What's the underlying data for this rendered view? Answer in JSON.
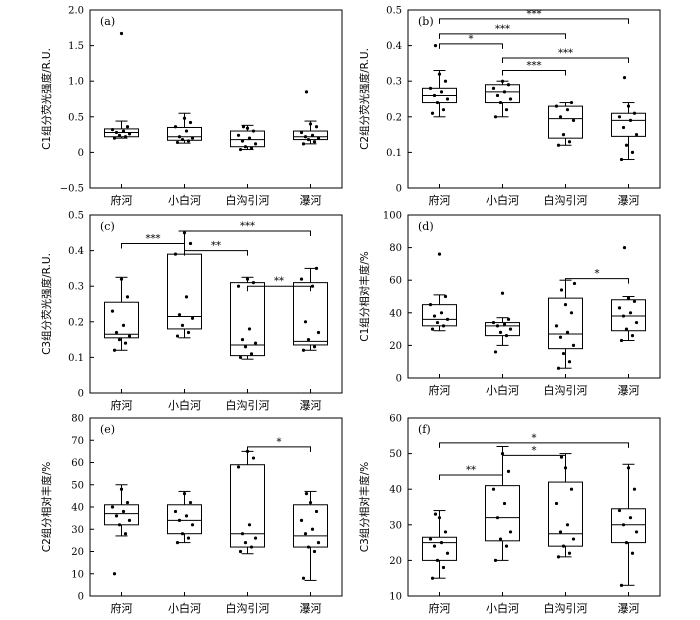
{
  "chart_data": [
    {
      "type": "box",
      "panel_label": "(a)",
      "ylabel": "C1组分荧光强度/R.U.",
      "ylim": [
        -0.5,
        2.0
      ],
      "yticks": [
        "−0.5",
        "0",
        "0.5",
        "1.0",
        "1.5",
        "2.0"
      ],
      "ytick_values": [
        -0.5,
        0,
        0.5,
        1.0,
        1.5,
        2.0
      ],
      "categories": [
        "府河",
        "小白河",
        "白沟引河",
        "瀑河"
      ],
      "boxes": [
        {
          "min": 0.2,
          "q1": 0.22,
          "median": 0.28,
          "q3": 0.33,
          "max": 0.44
        },
        {
          "min": 0.13,
          "q1": 0.17,
          "median": 0.22,
          "q3": 0.35,
          "max": 0.55
        },
        {
          "min": 0.04,
          "q1": 0.08,
          "median": 0.18,
          "q3": 0.3,
          "max": 0.38
        },
        {
          "min": 0.12,
          "q1": 0.18,
          "median": 0.22,
          "q3": 0.3,
          "max": 0.44
        }
      ],
      "points": [
        [
          0.2,
          0.22,
          0.24,
          0.26,
          0.28,
          0.3,
          0.32,
          0.36,
          1.67
        ],
        [
          0.14,
          0.16,
          0.18,
          0.2,
          0.22,
          0.3,
          0.36,
          0.42,
          0.48
        ],
        [
          0.04,
          0.06,
          0.08,
          0.12,
          0.16,
          0.2,
          0.24,
          0.3,
          0.34,
          0.36
        ],
        [
          0.12,
          0.15,
          0.18,
          0.2,
          0.22,
          0.24,
          0.28,
          0.36,
          0.4,
          0.85
        ]
      ],
      "significance": []
    },
    {
      "type": "box",
      "panel_label": "(b)",
      "ylabel": "C2组分荧光强度/R.U.",
      "ylim": [
        0,
        0.5
      ],
      "yticks": [
        "0",
        "0.1",
        "0.2",
        "0.3",
        "0.4",
        "0.5"
      ],
      "ytick_values": [
        0,
        0.1,
        0.2,
        0.3,
        0.4,
        0.5
      ],
      "categories": [
        "府河",
        "小白河",
        "白沟引河",
        "瀑河"
      ],
      "boxes": [
        {
          "min": 0.2,
          "q1": 0.24,
          "median": 0.26,
          "q3": 0.28,
          "max": 0.33
        },
        {
          "min": 0.2,
          "q1": 0.24,
          "median": 0.27,
          "q3": 0.29,
          "max": 0.3
        },
        {
          "min": 0.12,
          "q1": 0.14,
          "median": 0.195,
          "q3": 0.23,
          "max": 0.24
        },
        {
          "min": 0.08,
          "q1": 0.145,
          "median": 0.19,
          "q3": 0.21,
          "max": 0.24
        }
      ],
      "points": [
        [
          0.21,
          0.22,
          0.24,
          0.25,
          0.26,
          0.27,
          0.28,
          0.3,
          0.32,
          0.4
        ],
        [
          0.2,
          0.22,
          0.24,
          0.25,
          0.26,
          0.27,
          0.28,
          0.29,
          0.3
        ],
        [
          0.12,
          0.13,
          0.15,
          0.19,
          0.2,
          0.22,
          0.23,
          0.24
        ],
        [
          0.08,
          0.1,
          0.12,
          0.15,
          0.17,
          0.19,
          0.2,
          0.21,
          0.23,
          0.31
        ]
      ],
      "significance": [
        {
          "from": 0,
          "to": 3,
          "y": 0.475,
          "label": "***"
        },
        {
          "from": 0,
          "to": 2,
          "y": 0.433,
          "label": "***"
        },
        {
          "from": 0,
          "to": 1,
          "y": 0.405,
          "label": "*"
        },
        {
          "from": 1,
          "to": 3,
          "y": 0.365,
          "label": "***"
        },
        {
          "from": 1,
          "to": 2,
          "y": 0.33,
          "label": "***"
        }
      ]
    },
    {
      "type": "box",
      "panel_label": "(c)",
      "ylabel": "C3组分荧光强度/R.U.",
      "ylim": [
        0,
        0.5
      ],
      "yticks": [
        "0",
        "0.1",
        "0.2",
        "0.3",
        "0.4",
        "0.5"
      ],
      "ytick_values": [
        0,
        0.1,
        0.2,
        0.3,
        0.4,
        0.5
      ],
      "categories": [
        "府河",
        "小白河",
        "白沟引河",
        "瀑河"
      ],
      "boxes": [
        {
          "min": 0.12,
          "q1": 0.155,
          "median": 0.165,
          "q3": 0.255,
          "max": 0.325
        },
        {
          "min": 0.155,
          "q1": 0.18,
          "median": 0.215,
          "q3": 0.39,
          "max": 0.455
        },
        {
          "min": 0.095,
          "q1": 0.105,
          "median": 0.135,
          "q3": 0.31,
          "max": 0.325
        },
        {
          "min": 0.12,
          "q1": 0.135,
          "median": 0.145,
          "q3": 0.31,
          "max": 0.35
        }
      ],
      "points": [
        [
          0.12,
          0.14,
          0.15,
          0.16,
          0.17,
          0.19,
          0.23,
          0.27,
          0.32
        ],
        [
          0.16,
          0.17,
          0.19,
          0.21,
          0.22,
          0.27,
          0.39,
          0.42,
          0.45
        ],
        [
          0.1,
          0.11,
          0.13,
          0.14,
          0.15,
          0.18,
          0.3,
          0.31,
          0.32
        ],
        [
          0.12,
          0.13,
          0.15,
          0.17,
          0.2,
          0.3,
          0.32,
          0.35
        ]
      ],
      "significance": [
        {
          "from": 1,
          "to": 3,
          "y": 0.455,
          "label": "***"
        },
        {
          "from": 0,
          "to": 1,
          "y": 0.42,
          "label": "***"
        },
        {
          "from": 1,
          "to": 2,
          "y": 0.4,
          "label": "**"
        },
        {
          "from": 2,
          "to": 3,
          "y": 0.3,
          "label": "**"
        }
      ]
    },
    {
      "type": "box",
      "panel_label": "(d)",
      "ylabel": "C1组分相对丰度/%",
      "ylim": [
        0,
        100
      ],
      "yticks": [
        "0",
        "20",
        "40",
        "60",
        "80",
        "100"
      ],
      "ytick_values": [
        0,
        20,
        40,
        60,
        80,
        100
      ],
      "categories": [
        "府河",
        "小白河",
        "白沟引河",
        "瀑河"
      ],
      "boxes": [
        {
          "min": 29,
          "q1": 32,
          "median": 36,
          "q3": 45,
          "max": 51
        },
        {
          "min": 20,
          "q1": 26,
          "median": 32,
          "q3": 34,
          "max": 37
        },
        {
          "min": 6,
          "q1": 18,
          "median": 27,
          "q3": 49,
          "max": 60
        },
        {
          "min": 23,
          "q1": 29,
          "median": 38,
          "q3": 48,
          "max": 50
        }
      ],
      "points": [
        [
          30,
          32,
          34,
          36,
          38,
          40,
          45,
          50,
          76
        ],
        [
          16,
          26,
          28,
          30,
          32,
          33,
          34,
          36,
          52
        ],
        [
          6,
          10,
          15,
          20,
          25,
          28,
          32,
          40,
          45,
          54,
          58
        ],
        [
          23,
          26,
          30,
          34,
          38,
          40,
          43,
          47,
          49,
          80
        ]
      ],
      "significance": [
        {
          "from": 2,
          "to": 3,
          "y": 61,
          "label": "*"
        }
      ]
    },
    {
      "type": "box",
      "panel_label": "(e)",
      "ylabel": "C2组分相对丰度/%",
      "ylim": [
        0,
        80
      ],
      "yticks": [
        "0",
        "10",
        "20",
        "30",
        "40",
        "50",
        "60",
        "70",
        "80"
      ],
      "ytick_values": [
        0,
        10,
        20,
        30,
        40,
        50,
        60,
        70,
        80
      ],
      "categories": [
        "府河",
        "小白河",
        "白沟引河",
        "瀑河"
      ],
      "boxes": [
        {
          "min": 27,
          "q1": 32,
          "median": 37,
          "q3": 41,
          "max": 50
        },
        {
          "min": 24,
          "q1": 28,
          "median": 34,
          "q3": 41,
          "max": 47
        },
        {
          "min": 19,
          "q1": 22,
          "median": 28,
          "q3": 59,
          "max": 65
        },
        {
          "min": 7,
          "q1": 22,
          "median": 27,
          "q3": 41,
          "max": 47
        }
      ],
      "points": [
        [
          10,
          28,
          32,
          34,
          36,
          38,
          40,
          42,
          48
        ],
        [
          24,
          26,
          28,
          32,
          34,
          36,
          38,
          42,
          46
        ],
        [
          20,
          22,
          24,
          26,
          28,
          32,
          58,
          62,
          65
        ],
        [
          8,
          20,
          22,
          24,
          28,
          30,
          34,
          38,
          42,
          46
        ]
      ],
      "significance": [
        {
          "from": 2,
          "to": 3,
          "y": 67,
          "label": "*"
        }
      ]
    },
    {
      "type": "box",
      "panel_label": "(f)",
      "ylabel": "C3组分相对丰度/%",
      "ylim": [
        10,
        60
      ],
      "yticks": [
        "10",
        "20",
        "30",
        "40",
        "50",
        "60"
      ],
      "ytick_values": [
        10,
        20,
        30,
        40,
        50,
        60
      ],
      "categories": [
        "府河",
        "小白河",
        "白沟引河",
        "瀑河"
      ],
      "boxes": [
        {
          "min": 15,
          "q1": 20,
          "median": 25,
          "q3": 26.5,
          "max": 34
        },
        {
          "min": 20,
          "q1": 25.5,
          "median": 32,
          "q3": 41,
          "max": 52
        },
        {
          "min": 21,
          "q1": 24,
          "median": 27.5,
          "q3": 42,
          "max": 50
        },
        {
          "min": 13,
          "q1": 25,
          "median": 30,
          "q3": 34.5,
          "max": 47
        }
      ],
      "points": [
        [
          15,
          18,
          20,
          22,
          24,
          25,
          26,
          28,
          32,
          33
        ],
        [
          20,
          24,
          26,
          28,
          32,
          36,
          40,
          45,
          50
        ],
        [
          21,
          22,
          24,
          26,
          28,
          30,
          36,
          40,
          46,
          49
        ],
        [
          13,
          22,
          25,
          28,
          30,
          32,
          34,
          40,
          46
        ]
      ],
      "significance": [
        {
          "from": 0,
          "to": 3,
          "y": 53,
          "label": "*"
        },
        {
          "from": 1,
          "to": 2,
          "y": 49.5,
          "label": "*"
        },
        {
          "from": 0,
          "to": 1,
          "y": 44,
          "label": "**"
        }
      ]
    }
  ]
}
